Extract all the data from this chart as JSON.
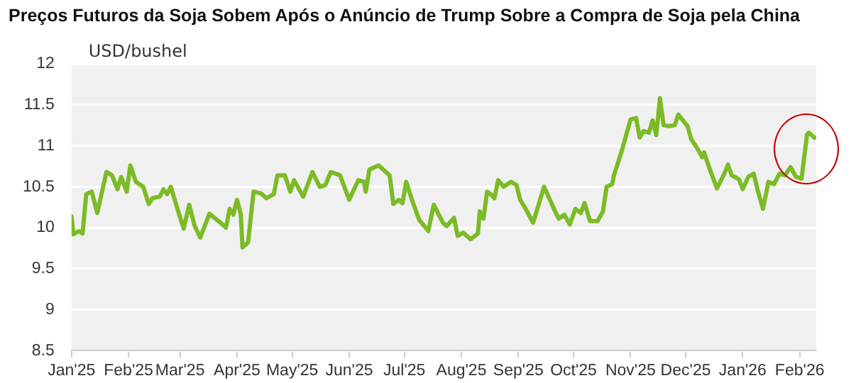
{
  "chart_data": {
    "type": "line",
    "title": "Preços Futuros da Soja Sobem Após o Anúncio de Trump Sobre a Compra de Soja pela China",
    "ylabel": "USD/bushel",
    "x": [
      "2025-01-01",
      "2025-01-02",
      "2025-01-05",
      "2025-01-07",
      "2025-01-09",
      "2025-01-12",
      "2025-01-15",
      "2025-01-20",
      "2025-01-23",
      "2025-01-26",
      "2025-01-28",
      "2025-01-31",
      "2025-02-02",
      "2025-02-05",
      "2025-02-09",
      "2025-02-12",
      "2025-02-14",
      "2025-02-18",
      "2025-02-20",
      "2025-02-22",
      "2025-02-24",
      "2025-02-28",
      "2025-03-03",
      "2025-03-06",
      "2025-03-09",
      "2025-03-12",
      "2025-03-17",
      "2025-03-22",
      "2025-03-26",
      "2025-03-28",
      "2025-03-30",
      "2025-04-01",
      "2025-04-03",
      "2025-04-04",
      "2025-04-07",
      "2025-04-10",
      "2025-04-14",
      "2025-04-17",
      "2025-04-21",
      "2025-04-23",
      "2025-04-27",
      "2025-04-30",
      "2025-05-02",
      "2025-05-07",
      "2025-05-12",
      "2025-05-16",
      "2025-05-19",
      "2025-05-22",
      "2025-05-27",
      "2025-06-01",
      "2025-06-06",
      "2025-06-09",
      "2025-06-10",
      "2025-06-12",
      "2025-06-17",
      "2025-06-23",
      "2025-06-25",
      "2025-06-28",
      "2025-06-30",
      "2025-07-02",
      "2025-07-05",
      "2025-07-09",
      "2025-07-14",
      "2025-07-17",
      "2025-07-22",
      "2025-07-24",
      "2025-07-28",
      "2025-07-30",
      "2025-08-02",
      "2025-08-06",
      "2025-08-10",
      "2025-08-11",
      "2025-08-13",
      "2025-08-15",
      "2025-08-17",
      "2025-08-19",
      "2025-08-21",
      "2025-08-24",
      "2025-08-28",
      "2025-08-31",
      "2025-09-02",
      "2025-09-05",
      "2025-09-09",
      "2025-09-15",
      "2025-09-21",
      "2025-09-23",
      "2025-09-26",
      "2025-09-29",
      "2025-10-02",
      "2025-10-05",
      "2025-10-07",
      "2025-10-10",
      "2025-10-14",
      "2025-10-17",
      "2025-10-19",
      "2025-10-22",
      "2025-10-23",
      "2025-10-27",
      "2025-11-01",
      "2025-11-04",
      "2025-11-06",
      "2025-11-08",
      "2025-11-11",
      "2025-11-13",
      "2025-11-15",
      "2025-11-17",
      "2025-11-19",
      "2025-11-22",
      "2025-11-25",
      "2025-11-27",
      "2025-12-02",
      "2025-12-04",
      "2025-12-07",
      "2025-12-10",
      "2025-12-11",
      "2025-12-14",
      "2025-12-18",
      "2025-12-22",
      "2025-12-24",
      "2025-12-26",
      "2025-12-30",
      "2026-01-01",
      "2026-01-04",
      "2026-01-07",
      "2026-01-09",
      "2026-01-12",
      "2026-01-15",
      "2026-01-18",
      "2026-01-21",
      "2026-01-24",
      "2026-01-27",
      "2026-01-30",
      "2026-02-02",
      "2026-02-05",
      "2026-02-06",
      "2026-02-09"
    ],
    "series": [
      {
        "color": "#7cbb26",
        "values": [
          10.14,
          9.92,
          9.96,
          9.93,
          10.41,
          10.44,
          10.18,
          10.68,
          10.64,
          10.47,
          10.62,
          10.44,
          10.76,
          10.56,
          10.5,
          10.29,
          10.36,
          10.38,
          10.47,
          10.41,
          10.5,
          10.2,
          9.99,
          10.28,
          10.02,
          9.88,
          10.17,
          10.08,
          10.0,
          10.23,
          10.16,
          10.34,
          10.17,
          9.76,
          9.82,
          10.44,
          10.42,
          10.36,
          10.41,
          10.64,
          10.64,
          10.44,
          10.58,
          10.38,
          10.68,
          10.5,
          10.52,
          10.68,
          10.64,
          10.34,
          10.58,
          10.56,
          10.44,
          10.71,
          10.76,
          10.64,
          10.29,
          10.34,
          10.3,
          10.56,
          10.35,
          10.1,
          9.96,
          10.28,
          10.06,
          10.02,
          10.12,
          9.9,
          9.94,
          9.86,
          9.93,
          10.2,
          10.11,
          10.44,
          10.41,
          10.36,
          10.58,
          10.5,
          10.56,
          10.52,
          10.34,
          10.23,
          10.06,
          10.5,
          10.2,
          10.11,
          10.16,
          10.04,
          10.23,
          10.18,
          10.3,
          10.08,
          10.08,
          10.2,
          10.5,
          10.53,
          10.64,
          10.92,
          11.32,
          11.34,
          11.1,
          11.18,
          11.16,
          11.31,
          11.13,
          11.58,
          11.25,
          11.24,
          11.25,
          11.38,
          11.24,
          11.08,
          10.98,
          10.86,
          10.92,
          10.72,
          10.48,
          10.66,
          10.77,
          10.64,
          10.59,
          10.47,
          10.62,
          10.66,
          10.47,
          10.23,
          10.56,
          10.53,
          10.66,
          10.64,
          10.74,
          10.62,
          10.6,
          11.14,
          11.16,
          11.1
        ]
      }
    ],
    "xlim": [
      "2025-01-01",
      "2026-02-10"
    ],
    "xticks": [
      {
        "value": "2025-01-01",
        "label": "Jan'25"
      },
      {
        "value": "2025-02-01",
        "label": "Feb'25"
      },
      {
        "value": "2025-03-01",
        "label": "Mar'25"
      },
      {
        "value": "2025-04-01",
        "label": "Apr'25"
      },
      {
        "value": "2025-05-01",
        "label": "May'25"
      },
      {
        "value": "2025-06-01",
        "label": "Jun'25"
      },
      {
        "value": "2025-07-01",
        "label": "Jul'25"
      },
      {
        "value": "2025-08-01",
        "label": "Aug'25"
      },
      {
        "value": "2025-09-01",
        "label": "Sep'25"
      },
      {
        "value": "2025-10-01",
        "label": "Oct'25"
      },
      {
        "value": "2025-11-01",
        "label": "Nov'25"
      },
      {
        "value": "2025-12-01",
        "label": "Dec'25"
      },
      {
        "value": "2026-01-01",
        "label": "Jan'26"
      },
      {
        "value": "2026-02-01",
        "label": "Feb'26"
      }
    ],
    "ylim": [
      8.5,
      12
    ],
    "yticks": [
      8.5,
      9,
      9.5,
      10,
      10.5,
      11,
      11.5,
      12
    ],
    "grid": "y",
    "marker": "none",
    "line_style": "solid"
  }
}
